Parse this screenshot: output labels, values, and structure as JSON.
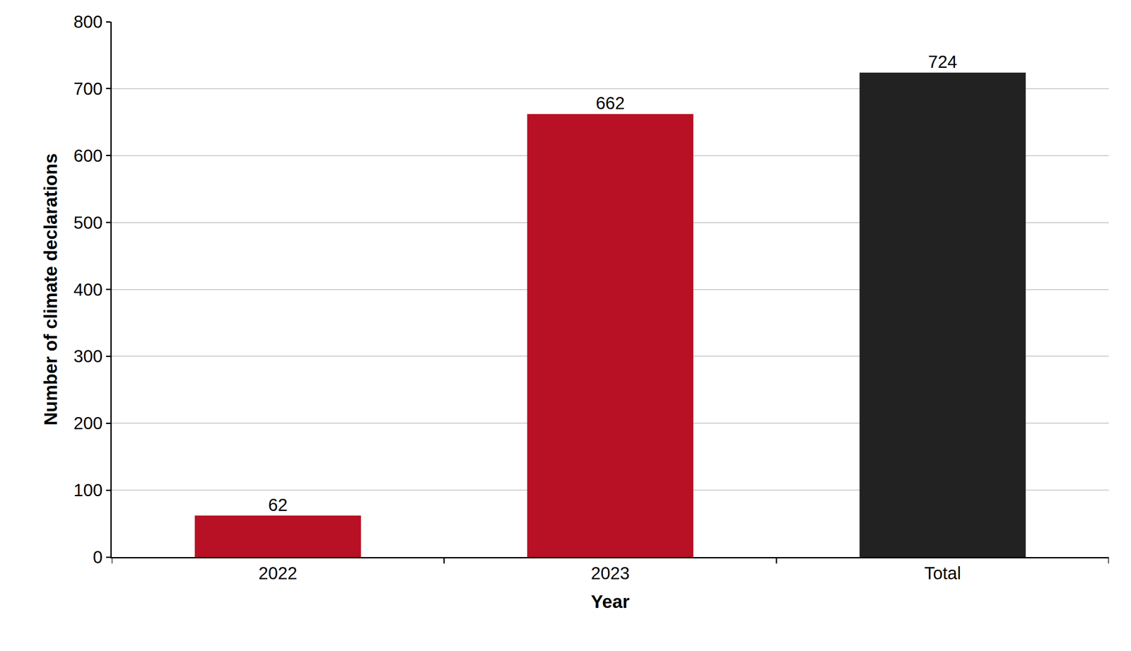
{
  "chart_data": {
    "type": "bar",
    "x_label": "Year",
    "y_label": "Number of climate declarations",
    "categories": [
      "2022",
      "2023",
      "Total"
    ],
    "values": [
      62,
      662,
      724
    ],
    "colors": [
      "#b81024",
      "#b81024",
      "#222222"
    ],
    "ylim": [
      0,
      800
    ],
    "yticks": [
      0,
      100,
      200,
      300,
      400,
      500,
      600,
      700,
      800
    ],
    "grid": true,
    "data_labels": true
  }
}
